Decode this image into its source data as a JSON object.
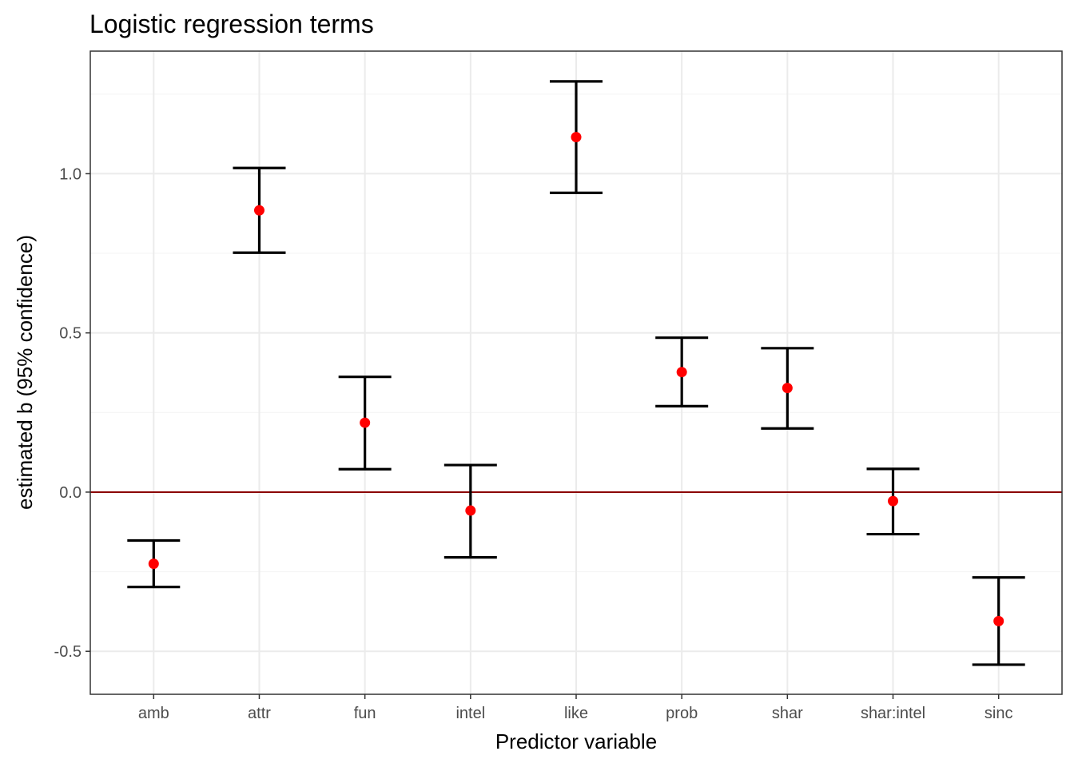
{
  "chart_data": {
    "type": "errorbar",
    "title": "Logistic regression terms",
    "xlabel": "Predictor variable",
    "ylabel": "estimated b (95% confidence)",
    "categories": [
      "amb",
      "attr",
      "fun",
      "intel",
      "like",
      "prob",
      "shar",
      "shar:intel",
      "sinc"
    ],
    "estimates": [
      -0.225,
      0.885,
      0.218,
      -0.058,
      1.115,
      0.377,
      0.327,
      -0.028,
      -0.405
    ],
    "lower": [
      -0.298,
      0.752,
      0.072,
      -0.205,
      0.94,
      0.27,
      0.2,
      -0.132,
      -0.542
    ],
    "upper": [
      -0.152,
      1.018,
      0.362,
      0.085,
      1.29,
      0.485,
      0.452,
      0.073,
      -0.268
    ],
    "ylim": [
      -0.635,
      1.385
    ],
    "yticks": [
      -0.5,
      0.0,
      0.5,
      1.0
    ],
    "ytick_labels": [
      "-0.5",
      "0.0",
      "0.5",
      "1.0"
    ],
    "reference_line": 0.0,
    "grid": true,
    "legend": "none",
    "colors": {
      "point": "#ff0000",
      "errorbar": "#000000",
      "reference_line": "#8b0000",
      "grid_major": "#ebebeb",
      "grid_minor": "#f5f5f5",
      "panel_border": "#333333",
      "tick_label": "#4d4d4d"
    }
  }
}
